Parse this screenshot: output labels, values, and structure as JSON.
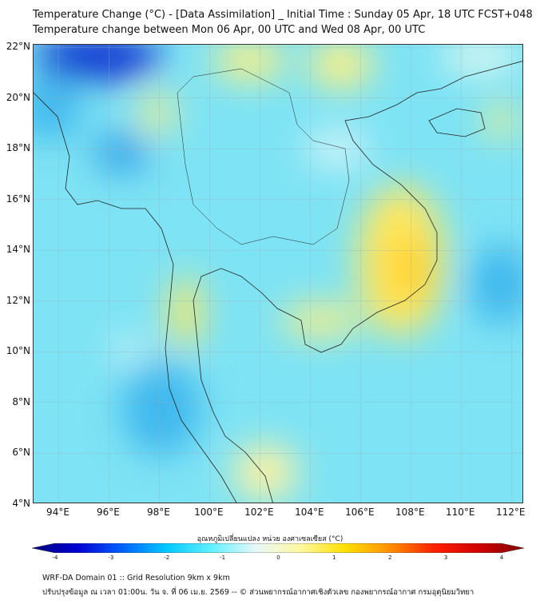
{
  "title": {
    "line1": "Temperature Change (°C) - [Data Assimilation] _ Initial Time : Sunday 05 Apr, 18 UTC FCST+048",
    "line2": "Temperature change between Mon 06 Apr, 00 UTC and Wed 08 Apr, 00 UTC"
  },
  "map": {
    "lat_labels": [
      "22°N",
      "20°N",
      "18°N",
      "16°N",
      "14°N",
      "12°N",
      "10°N",
      "8°N",
      "6°N",
      "4°N"
    ],
    "lon_labels": [
      "94°E",
      "96°E",
      "98°E",
      "100°E",
      "102°E",
      "104°E",
      "106°E",
      "108°E",
      "110°E",
      "112°E"
    ],
    "lat_values": [
      22,
      20,
      18,
      16,
      14,
      12,
      10,
      8,
      6,
      4
    ],
    "lon_values": [
      94,
      96,
      98,
      100,
      102,
      104,
      106,
      108,
      110,
      112
    ],
    "extent": {
      "lon": [
        93,
        112.5
      ],
      "lat": [
        4,
        22.1
      ]
    }
  },
  "colorbar": {
    "title": "อุณหภูมิเปลี่ยนแปลง หน่วย องศาเซลเซียส (°C)",
    "ticks": [
      "-4",
      "-3",
      "-2",
      "-1",
      "0",
      "1",
      "2",
      "3",
      "4"
    ],
    "range": [
      -4,
      4
    ],
    "colors": [
      "#00007f",
      "#0000d0",
      "#0060ff",
      "#00c8ff",
      "#60f0ff",
      "#e8f8f8",
      "#fff8a0",
      "#ffe000",
      "#ff9000",
      "#ff2000",
      "#d00000",
      "#7f0000"
    ]
  },
  "footer": {
    "line1": "WRF-DA Domain 01 :: Grid Resolution 9km x 9km",
    "line2": "ปรับปรุงข้อมูล ณ เวลา 01:00น. วัน จ. ที่ 06 เม.ย. 2569 -- © ส่วนพยากรณ์อากาศเชิงตัวเลข กองพยากรณ์อากาศ กรมอุตุนิยมวิทยา"
  }
}
